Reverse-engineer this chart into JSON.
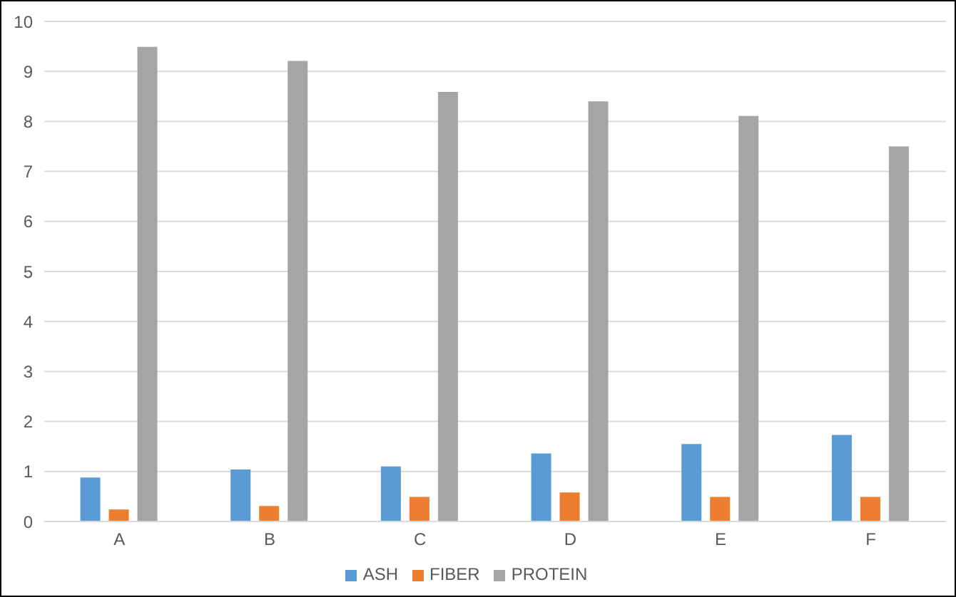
{
  "chart_data": {
    "type": "bar",
    "categories": [
      "A",
      "B",
      "C",
      "D",
      "E",
      "F"
    ],
    "series": [
      {
        "name": "ASH",
        "color": "#5b9bd5",
        "values": [
          0.88,
          1.04,
          1.1,
          1.36,
          1.55,
          1.73
        ]
      },
      {
        "name": "FIBER",
        "color": "#ed7d31",
        "values": [
          0.24,
          0.31,
          0.49,
          0.58,
          0.49,
          0.49
        ]
      },
      {
        "name": "PROTEIN",
        "color": "#a5a5a5",
        "values": [
          9.49,
          9.21,
          8.59,
          8.4,
          8.11,
          7.5
        ]
      }
    ],
    "ylim": [
      0,
      10
    ],
    "yticks": [
      0,
      1,
      2,
      3,
      4,
      5,
      6,
      7,
      8,
      9,
      10
    ],
    "grid": "y",
    "legend": "bottom"
  }
}
